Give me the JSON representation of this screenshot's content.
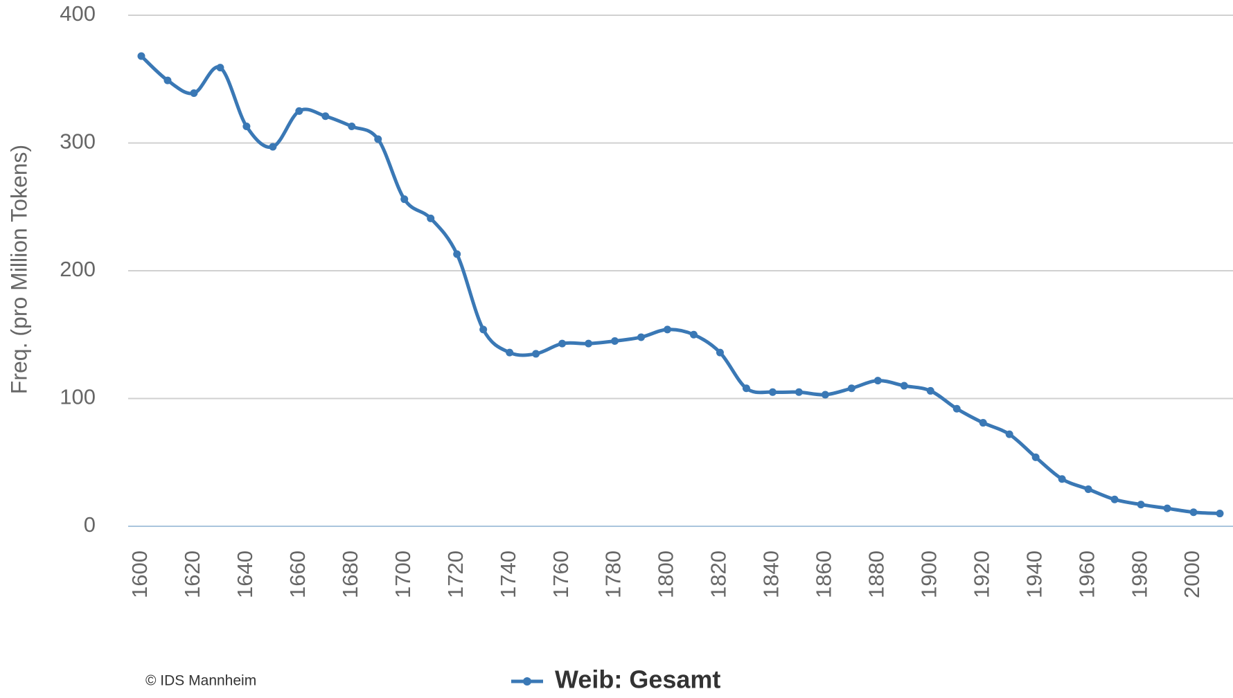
{
  "chart_data": {
    "type": "line",
    "ylabel": "Freq. (pro Million Tokens)",
    "annotation": "© IDS Mannheim",
    "categories": [
      "1600",
      null,
      "1620",
      null,
      "1640",
      null,
      "1660",
      null,
      "1680",
      null,
      "1700",
      null,
      "1720",
      null,
      "1740",
      null,
      "1760",
      null,
      "1780",
      null,
      "1800",
      null,
      "1820",
      null,
      "1840",
      null,
      "1860",
      null,
      "1880",
      null,
      "1900",
      null,
      "1920",
      null,
      "1940",
      null,
      "1960",
      null,
      "1980",
      null,
      "2000",
      null
    ],
    "series": [
      {
        "name": "Weib: Gesamt",
        "color": "#3a78b5",
        "values": [
          368,
          349,
          339,
          359,
          313,
          297,
          325,
          321,
          313,
          303,
          256,
          241,
          213,
          154,
          136,
          135,
          143,
          143,
          145,
          148,
          154,
          150,
          136,
          108,
          105,
          105,
          103,
          108,
          114,
          110,
          106,
          92,
          81,
          72,
          54,
          37,
          29,
          21,
          17,
          14,
          11,
          10
        ]
      }
    ],
    "ylim": [
      0,
      400
    ],
    "yticks": [
      0,
      100,
      200,
      300,
      400
    ],
    "grid": true,
    "legend": "bottom"
  }
}
